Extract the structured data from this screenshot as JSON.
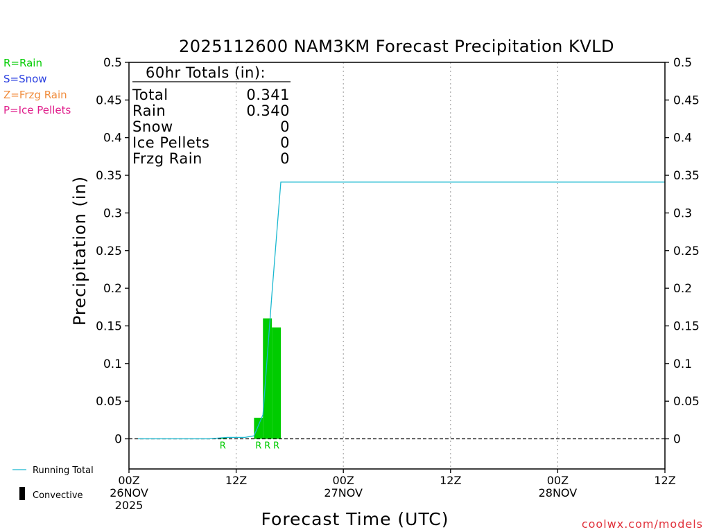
{
  "colors": {
    "rain": "#00cc00",
    "snow": "#2a3fe0",
    "frzg_rain": "#f08c3c",
    "ice_pellets": "#e0208c",
    "running_total": "#1ab8d0",
    "convective": "#000000",
    "site": "#e0303a"
  },
  "ptype_legend": [
    {
      "label": "R=Rain",
      "color_key": "rain"
    },
    {
      "label": "S=Snow",
      "color_key": "snow"
    },
    {
      "label": "Z=Frzg Rain",
      "color_key": "frzg_rain"
    },
    {
      "label": "P=Ice Pellets",
      "color_key": "ice_pellets"
    }
  ],
  "series_legend": {
    "running_total": "Running Total",
    "convective": "Convective"
  },
  "totals_box": {
    "header": "60hr Totals (in):",
    "rows": [
      {
        "label": "Total",
        "value": "0.341"
      },
      {
        "label": "Rain",
        "value": "0.340"
      },
      {
        "label": "Snow",
        "value": "0"
      },
      {
        "label": "Ice Pellets",
        "value": "0"
      },
      {
        "label": "Frzg Rain",
        "value": "0"
      }
    ]
  },
  "site_credit": "coolwx.com/models",
  "chart_data": {
    "type": "bar",
    "title": "2025112600 NAM3KM Forecast Precipitation KVLD",
    "xlabel": "Forecast Time (UTC)",
    "ylabel": "Precipitation (in)",
    "xlim_hours": [
      0,
      60
    ],
    "ylim": [
      -0.04,
      0.5
    ],
    "yticks": [
      0,
      0.05,
      0.1,
      0.15,
      0.2,
      0.25,
      0.3,
      0.35,
      0.4,
      0.45,
      0.5
    ],
    "ytick_labels": [
      "0",
      "0.05",
      "0.1",
      "0.15",
      "0.2",
      "0.25",
      "0.3",
      "0.35",
      "0.4",
      "0.45",
      "0.5"
    ],
    "xticks": [
      {
        "hour": 0,
        "lines": [
          "00Z",
          "26NOV",
          "2025"
        ]
      },
      {
        "hour": 12,
        "lines": [
          "12Z"
        ]
      },
      {
        "hour": 24,
        "lines": [
          "00Z",
          "27NOV"
        ]
      },
      {
        "hour": 36,
        "lines": [
          "12Z"
        ]
      },
      {
        "hour": 48,
        "lines": [
          "00Z",
          "28NOV"
        ]
      },
      {
        "hour": 60,
        "lines": [
          "12Z"
        ]
      }
    ],
    "grid_hours": [
      12,
      24,
      36,
      48
    ],
    "bars": [
      {
        "hour_start": 10,
        "hour_end": 11,
        "value": 0.001,
        "type": "R"
      },
      {
        "hour_start": 14,
        "hour_end": 15,
        "value": 0.028,
        "type": "R"
      },
      {
        "hour_start": 15,
        "hour_end": 16,
        "value": 0.16,
        "type": "R"
      },
      {
        "hour_start": 16,
        "hour_end": 17,
        "value": 0.148,
        "type": "R"
      }
    ],
    "ptype_markers": [
      {
        "hour": 10.5,
        "label": "R"
      },
      {
        "hour": 14.5,
        "label": "R"
      },
      {
        "hour": 15.5,
        "label": "R"
      },
      {
        "hour": 16.5,
        "label": "R"
      }
    ],
    "running_total": {
      "hours": [
        1,
        9,
        10,
        11,
        12,
        13,
        14,
        15,
        16,
        17,
        60
      ],
      "values": [
        0,
        0,
        0.001,
        0.002,
        0.002,
        0.002,
        0.004,
        0.032,
        0.192,
        0.341,
        0.341
      ]
    },
    "zero_line": true
  }
}
